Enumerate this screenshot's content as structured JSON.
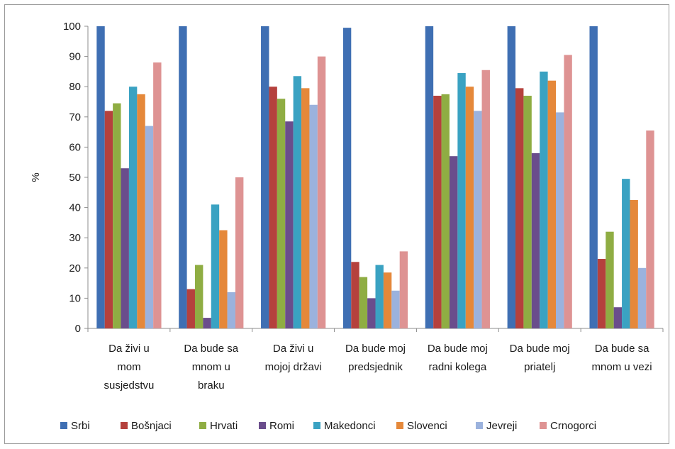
{
  "chart_data": {
    "type": "bar",
    "ylabel": "%",
    "xlabel": "",
    "ylim": [
      0,
      100
    ],
    "yticks": [
      "0",
      "10",
      "20",
      "30",
      "40",
      "50",
      "60",
      "70",
      "80",
      "90",
      "100"
    ],
    "grid": false,
    "legend_position": "bottom",
    "categories": [
      [
        "Da živi u",
        "mom",
        "susjedstvu"
      ],
      [
        "Da bude sa",
        "mnom u",
        "braku"
      ],
      [
        "Da živi u",
        "mojoj državi"
      ],
      [
        "Da bude moj",
        "predsjednik"
      ],
      [
        "Da bude moj",
        "radni kolega"
      ],
      [
        "Da bude moj",
        "priatelj"
      ],
      [
        "Da bude sa",
        "mnom u vezi"
      ]
    ],
    "series": [
      {
        "name": "Srbi",
        "color": "#3f6fb3",
        "values": [
          100,
          100,
          100,
          99.5,
          100,
          100,
          100
        ]
      },
      {
        "name": "Bošnjaci",
        "color": "#b5413d",
        "values": [
          72,
          13,
          80,
          22,
          77,
          79.5,
          23
        ]
      },
      {
        "name": "Hrvati",
        "color": "#8fad43",
        "values": [
          74.5,
          21,
          76,
          17,
          77.5,
          77,
          32
        ]
      },
      {
        "name": "Romi",
        "color": "#6a4d8c",
        "values": [
          53,
          3.5,
          68.5,
          10,
          57,
          58,
          7
        ]
      },
      {
        "name": "Makedonci",
        "color": "#3aa2c2",
        "values": [
          80,
          41,
          83.5,
          21,
          84.5,
          85,
          49.5
        ]
      },
      {
        "name": "Slovenci",
        "color": "#e5883a",
        "values": [
          77.5,
          32.5,
          79.5,
          18.5,
          80,
          82,
          42.5
        ]
      },
      {
        "name": "Jevreji",
        "color": "#9bb2dd",
        "values": [
          67,
          12,
          74,
          12.5,
          72,
          71.5,
          20
        ]
      },
      {
        "name": "Crnogorci",
        "color": "#de9393",
        "values": [
          88,
          50,
          90,
          25.5,
          85.5,
          90.5,
          65.5
        ]
      }
    ]
  }
}
